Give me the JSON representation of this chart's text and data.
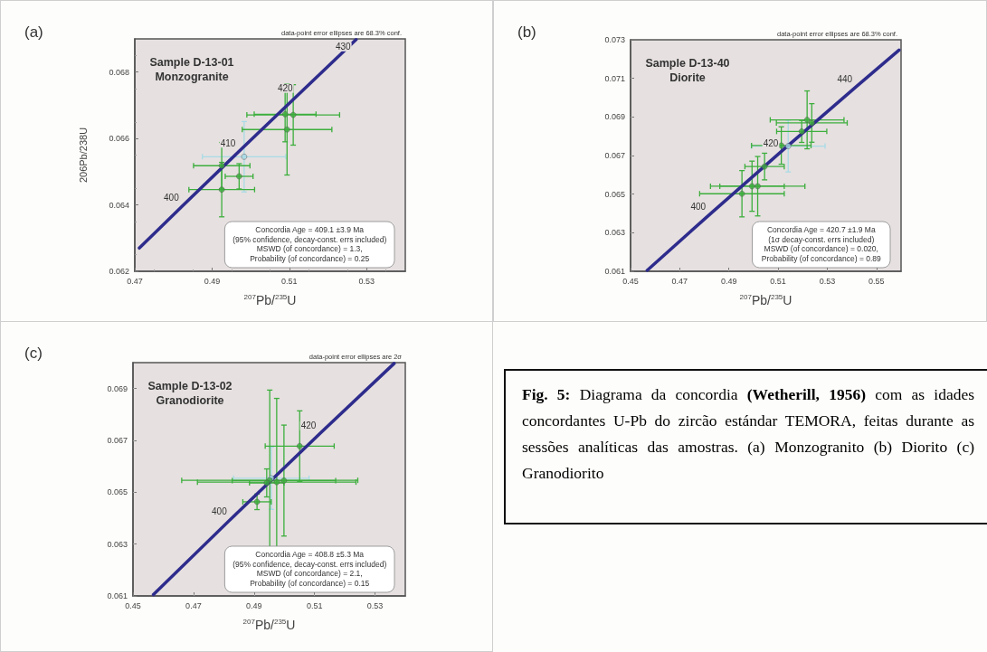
{
  "chart_data": [
    {
      "type": "scatter",
      "title": "Sample D-13-01",
      "subtitle": "Monzogranite",
      "xlabel": "$^{207}$Pb/$^{235}$U",
      "ylabel": "206Pb/238U",
      "xlim": [
        0.47,
        0.54
      ],
      "ylim": [
        0.062,
        0.069
      ],
      "xticks": [
        0.47,
        0.49,
        0.51,
        0.53
      ],
      "yticks": [
        0.062,
        0.064,
        0.066,
        0.068
      ],
      "marker": "circle",
      "annotations": [
        "(a)",
        "data-point error ellipses are 68.3% conf.",
        "Concordia Age = 409.1 ±3.9 Ma",
        "(95% confidence, decay-const. errs included)",
        "MSWD (of concordance) = 1.3,",
        "Probability (of concordance) = 0.25",
        {
          "text": "400",
          "x": 0.48281,
          "y": 0.06402
        },
        {
          "text": "410",
          "x": 0.49748,
          "y": 0.06567
        },
        {
          "text": "420",
          "x": 0.5123,
          "y": 0.06732
        },
        {
          "text": "430",
          "x": 0.52727,
          "y": 0.06898
        }
      ],
      "series": [
        {
          "type": "scatter",
          "color": "#a8dbe6",
          "x": [
            0.4983
          ],
          "values": [
            0.06545
          ],
          "xerrors": [
            0.0108
          ],
          "errors": [
            0.00106
          ]
        },
        {
          "type": "scatter",
          "color": "#3cae3c",
          "x": [
            0.4925,
            0.4925,
            0.497,
            0.5094,
            0.511,
            0.5089
          ],
          "values": [
            0.06446,
            0.06518,
            0.06486,
            0.06627,
            0.06671,
            0.06673
          ],
          "xerrors": [
            0.0085,
            0.0073,
            0.0036,
            0.0116,
            0.012,
            0.008
          ],
          "errors": [
            0.00082,
            0.0007,
            0.00038,
            0.00137,
            0.00091,
            0.00083
          ]
        },
        {
          "type": "line",
          "marker": "none",
          "color": "#2e2c8c",
          "x": [
            0.47117,
            0.48281,
            0.49748,
            0.5123,
            0.52727
          ],
          "values": [
            0.0627,
            0.06402,
            0.06567,
            0.06732,
            0.06898
          ]
        }
      ]
    },
    {
      "type": "scatter",
      "title": "Sample D-13-40",
      "subtitle": "Diorite",
      "xlabel": "$^{207}$Pb/$^{235}$U",
      "xlim": [
        0.45,
        0.56
      ],
      "ylim": [
        0.061,
        0.073
      ],
      "xticks": [
        0.45,
        0.47,
        0.49,
        0.51,
        0.53,
        0.55
      ],
      "yticks": [
        0.061,
        0.063,
        0.065,
        0.067,
        0.069,
        0.071,
        0.073
      ],
      "marker": "circle",
      "annotations": [
        "(b)",
        "data-point error ellipses are 68.3% conf.",
        "Concordia Age = 420.7 ±1.9 Ma",
        "(1σ decay-const. errs included)",
        "MSWD (of concordance) = 0.020,",
        "Probability (of concordance) = 0.89",
        {
          "text": "400",
          "x": 0.48281,
          "y": 0.06402
        },
        {
          "text": "420",
          "x": 0.5123,
          "y": 0.06732
        },
        {
          "text": "440",
          "x": 0.54239,
          "y": 0.07064
        }
      ],
      "series": [
        {
          "type": "scatter",
          "color": "#a8dbe6",
          "x": [
            0.5141
          ],
          "values": [
            0.06749
          ],
          "xerrors": [
            0.015
          ],
          "errors": [
            0.00134
          ]
        },
        {
          "type": "scatter",
          "color": "#3cae3c",
          "x": [
            0.4953,
            0.5017,
            0.4994,
            0.5045,
            0.5113,
            0.5218,
            0.5237,
            0.5196
          ],
          "values": [
            0.06502,
            0.06541,
            0.06541,
            0.06643,
            0.06752,
            0.06885,
            0.06869,
            0.06825
          ],
          "xerrors": [
            0.0172,
            0.0192,
            0.0131,
            0.008,
            0.0121,
            0.015,
            0.0144,
            0.0102
          ],
          "errors": [
            0.0012,
            0.00154,
            0.0013,
            0.00069,
            0.00097,
            0.0015,
            0.001,
            0.00057
          ]
        },
        {
          "type": "line",
          "marker": "none",
          "color": "#2e2c8c",
          "x": [
            0.45675,
            0.48281,
            0.5123,
            0.54239,
            0.55919
          ],
          "values": [
            0.06105,
            0.06402,
            0.06732,
            0.07064,
            0.07247
          ]
        }
      ]
    },
    {
      "type": "scatter",
      "title": "Sample D-13-02",
      "subtitle": "Granodiorite",
      "xlabel": "$^{207}$Pb/$^{235}$U",
      "xlim": [
        0.45,
        0.54
      ],
      "ylim": [
        0.061,
        0.07
      ],
      "xticks": [
        0.45,
        0.47,
        0.49,
        0.51,
        0.53
      ],
      "yticks": [
        0.061,
        0.063,
        0.065,
        0.067,
        0.069
      ],
      "marker": "circle",
      "annotations": [
        "(c)",
        "data-point error ellipses are 2σ",
        "Concordia Age = 408.8 ±5.3 Ma",
        "(95% confidence, decay-const. errs included)",
        "MSWD (of concordance) = 2.1,",
        "Probability (of concordance) = 0.15",
        {
          "text": "400",
          "x": 0.48281,
          "y": 0.06402
        },
        {
          "text": "420",
          "x": 0.5123,
          "y": 0.06732
        }
      ],
      "series": [
        {
          "type": "scatter",
          "color": "#a8dbe6",
          "x": [
            0.4957
          ],
          "values": [
            0.06554
          ],
          "xerrors": [
            0.0125
          ],
          "errors": [
            0.0012
          ]
        },
        {
          "type": "scatter",
          "color": "#3cae3c",
          "x": [
            0.4952,
            0.4975,
            0.4999,
            0.491,
            0.5051,
            0.4942
          ],
          "values": [
            0.06546,
            0.06539,
            0.06545,
            0.06463,
            0.06678,
            0.06536
          ],
          "xerrors": [
            0.0291,
            0.0262,
            0.0171,
            0.0047,
            0.0114,
            0.0057
          ],
          "errors": [
            0.00348,
            0.00323,
            0.00214,
            0.0003,
            0.00136,
            0.00054
          ]
        },
        {
          "type": "line",
          "marker": "none",
          "color": "#2e2c8c",
          "x": [
            0.45675,
            0.48281,
            0.5123,
            0.53632
          ],
          "values": [
            0.06105,
            0.06402,
            0.06732,
            0.06997
          ]
        }
      ]
    },
    {
      "type": "other",
      "annotations": [
        "Fig. 5:",
        "Diagrama da concordia",
        "(Wetherill, 1956)",
        "com as idades concordantes U-Pb do zircão estándar TEMORA, feitas durante as sessões analíticas das amostras. (a) Monzogranito (b) Diorito (c) Granodiorito"
      ]
    }
  ]
}
